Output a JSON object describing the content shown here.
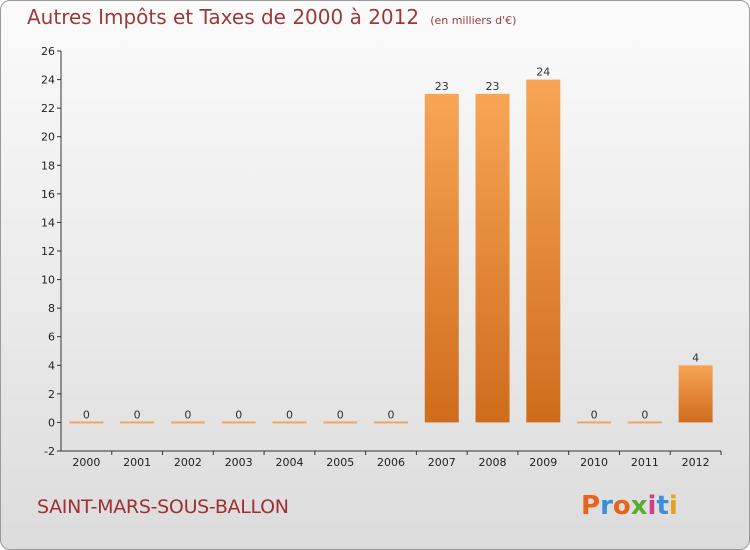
{
  "header": {
    "title": "Autres Impôts et Taxes de 2000 à 2012",
    "unit": "(en milliers d'€)"
  },
  "footer": {
    "commune": "SAINT-MARS-SOUS-BALLON",
    "logo": "Proxiti",
    "logo_colors": [
      "#e8641b",
      "#3b8fd9",
      "#e8641b",
      "#5aac2a",
      "#d33c8a",
      "#3b8fd9",
      "#e8a21b"
    ]
  },
  "colors": {
    "bar_top": "#f7a555",
    "bar_bottom": "#cf6c1c",
    "zero_bar": "#f2a563",
    "axis": "#333333",
    "grid": "#e9e9e9"
  },
  "chart_data": {
    "type": "bar",
    "categories": [
      "2000",
      "2001",
      "2002",
      "2003",
      "2004",
      "2005",
      "2006",
      "2007",
      "2008",
      "2009",
      "2010",
      "2011",
      "2012"
    ],
    "values": [
      0,
      0,
      0,
      0,
      0,
      0,
      0,
      23,
      23,
      24,
      0,
      0,
      4
    ],
    "data_labels": [
      "0",
      "0",
      "0",
      "0",
      "0",
      "0",
      "0",
      "23",
      "23",
      "24",
      "0",
      "0",
      "4"
    ],
    "yticks": [
      -2,
      0,
      2,
      4,
      6,
      8,
      10,
      12,
      14,
      16,
      18,
      20,
      22,
      24,
      26
    ],
    "ylim": [
      -2,
      26
    ],
    "xlabel": "",
    "ylabel": "",
    "grid": false
  }
}
